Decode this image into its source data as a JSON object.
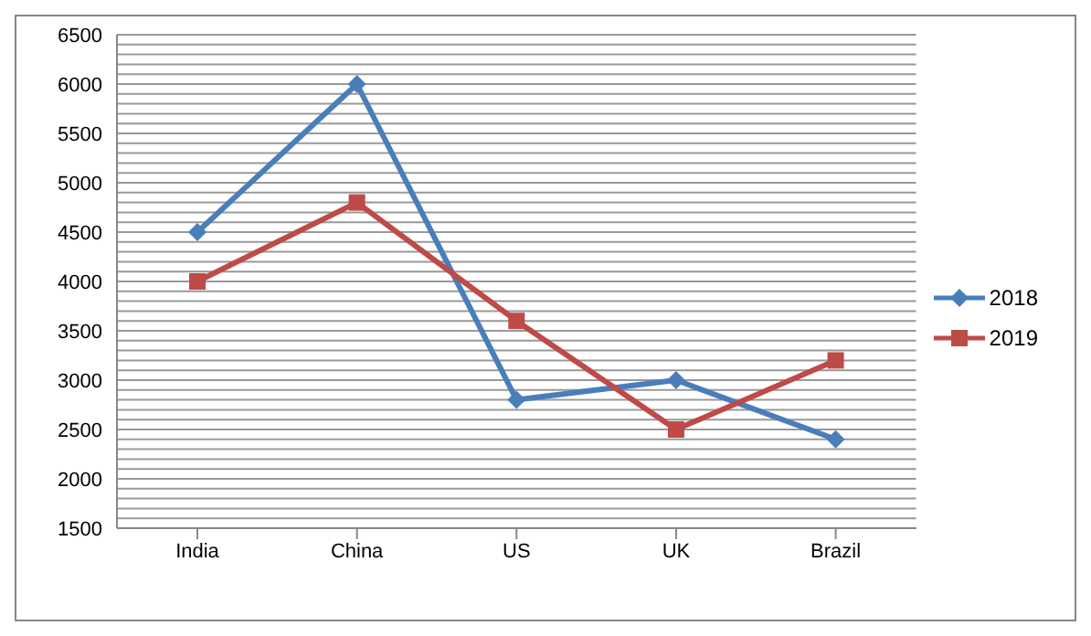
{
  "chart_data": {
    "type": "line",
    "categories": [
      "India",
      "China",
      "US",
      "UK",
      "Brazil"
    ],
    "series": [
      {
        "name": "2018",
        "color": "#4a7ebb",
        "marker": "diamond",
        "values": [
          4500,
          6000,
          2800,
          3000,
          2400
        ]
      },
      {
        "name": "2019",
        "color": "#be4b48",
        "marker": "square",
        "values": [
          4000,
          4800,
          3600,
          2500,
          3200
        ]
      }
    ],
    "ylim": [
      1500,
      6500
    ],
    "yticks": [
      1500,
      {
        "value": 1600,
        "label": null
      },
      {
        "value": 1700,
        "label": null
      },
      {
        "value": 1800,
        "label": null
      },
      {
        "value": 1900,
        "label": null
      },
      2000,
      {
        "value": 2100,
        "label": null
      },
      {
        "value": 2200,
        "label": null
      },
      {
        "value": 2300,
        "label": null
      },
      {
        "value": 2400,
        "label": null
      },
      2500,
      {
        "value": 2600,
        "label": null
      },
      {
        "value": 2700,
        "label": null
      },
      {
        "value": 2800,
        "label": null
      },
      {
        "value": 2900,
        "label": null
      },
      3000,
      {
        "value": 3100,
        "label": null
      },
      {
        "value": 3200,
        "label": null
      },
      {
        "value": 3300,
        "label": null
      },
      {
        "value": 3400,
        "label": null
      },
      3500,
      {
        "value": 3600,
        "label": null
      },
      {
        "value": 3700,
        "label": null
      },
      {
        "value": 3800,
        "label": null
      },
      {
        "value": 3900,
        "label": null
      },
      4000,
      {
        "value": 4100,
        "label": null
      },
      {
        "value": 4200,
        "label": null
      },
      {
        "value": 4300,
        "label": null
      },
      {
        "value": 4400,
        "label": null
      },
      4500,
      {
        "value": 4600,
        "label": null
      },
      {
        "value": 4700,
        "label": null
      },
      {
        "value": 4800,
        "label": null
      },
      {
        "value": 4900,
        "label": null
      },
      5000,
      {
        "value": 5100,
        "label": null
      },
      {
        "value": 5200,
        "label": null
      },
      {
        "value": 5300,
        "label": null
      },
      {
        "value": 5400,
        "label": null
      },
      5500,
      {
        "value": 5600,
        "label": null
      },
      {
        "value": 5700,
        "label": null
      },
      {
        "value": 5800,
        "label": null
      },
      {
        "value": 5900,
        "label": null
      },
      6000,
      {
        "value": 6100,
        "label": null
      },
      {
        "value": 6200,
        "label": null
      },
      {
        "value": 6300,
        "label": null
      },
      {
        "value": 6400,
        "label": null
      },
      6500
    ],
    "grid": "y",
    "legend": "right",
    "line_style": "solid"
  }
}
